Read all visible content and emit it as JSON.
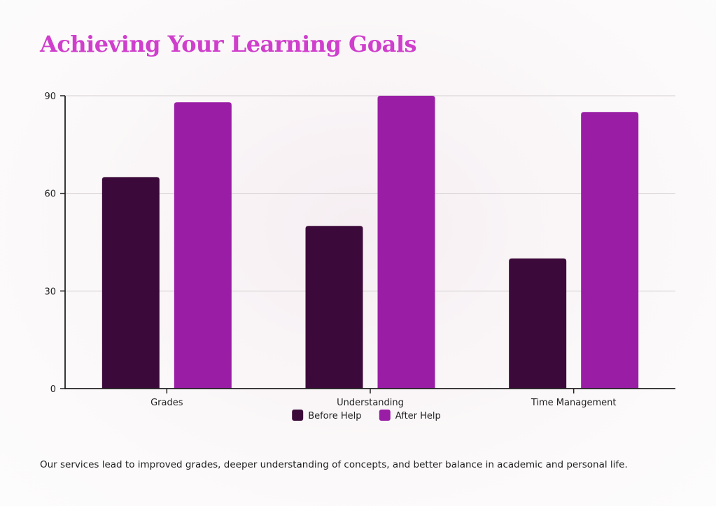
{
  "title": "Achieving Your Learning Goals",
  "footer_note": "Our services lead to improved grades, deeper understanding of concepts, and better balance in academic and personal life.",
  "chart_data": {
    "type": "bar",
    "title": "",
    "xlabel": "",
    "ylabel": "",
    "categories": [
      "Grades",
      "Understanding",
      "Time Management"
    ],
    "series": [
      {
        "name": "Before Help",
        "values": [
          65,
          50,
          40
        ],
        "color": "#3c0a3a"
      },
      {
        "name": "After Help",
        "values": [
          88,
          90,
          85
        ],
        "color": "#9a1ea5"
      }
    ],
    "ylim": [
      0,
      90
    ],
    "yticks": [
      0,
      30,
      60,
      90
    ],
    "grid": true,
    "legend_position": "bottom-center"
  }
}
